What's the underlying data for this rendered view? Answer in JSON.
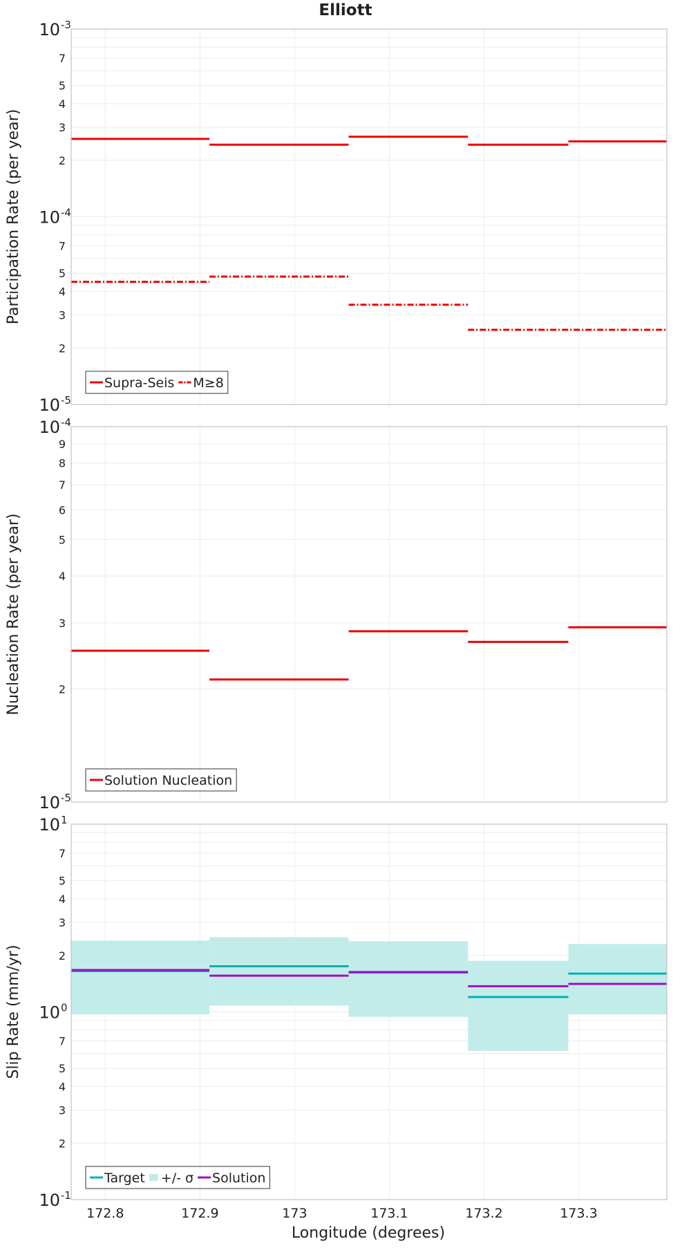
{
  "title": "Elliott",
  "xlabel": "Longitude (degrees)",
  "x_ticks": [
    172.8,
    172.9,
    173,
    173.1,
    173.2,
    173.3
  ],
  "xlim": [
    172.764,
    173.393
  ],
  "chart_data": [
    {
      "type": "line",
      "ylabel": "Participation Rate (per year)",
      "yscale": "log",
      "ylim": [
        1e-05,
        0.001
      ],
      "grid": true,
      "legend": {
        "placement": "bottom-left",
        "entries": [
          "Supra-Seis",
          "M≥8"
        ]
      },
      "series": [
        {
          "name": "Supra-Seis",
          "color": "#ee0000",
          "style": "solid",
          "segments": [
            {
              "x": [
                172.764,
                172.91
              ],
              "y": 0.00026
            },
            {
              "x": [
                172.91,
                173.057
              ],
              "y": 0.000242
            },
            {
              "x": [
                173.057,
                173.183
              ],
              "y": 0.000267
            },
            {
              "x": [
                173.183,
                173.289
              ],
              "y": 0.000242
            },
            {
              "x": [
                173.289,
                173.393
              ],
              "y": 0.000252
            }
          ]
        },
        {
          "name": "M≥8",
          "color": "#ee0000",
          "style": "dash-dot",
          "segments": [
            {
              "x": [
                172.764,
                172.91
              ],
              "y": 4.5e-05
            },
            {
              "x": [
                172.91,
                173.057
              ],
              "y": 4.8e-05
            },
            {
              "x": [
                173.057,
                173.183
              ],
              "y": 3.4e-05
            },
            {
              "x": [
                173.183,
                173.393
              ],
              "y": 2.5e-05
            }
          ]
        }
      ]
    },
    {
      "type": "line",
      "ylabel": "Nucleation Rate (per year)",
      "yscale": "log",
      "ylim": [
        1e-05,
        0.0001
      ],
      "grid": true,
      "legend": {
        "placement": "bottom-left",
        "entries": [
          "Solution Nucleation"
        ]
      },
      "series": [
        {
          "name": "Solution Nucleation",
          "color": "#ee0000",
          "style": "solid",
          "segments": [
            {
              "x": [
                172.764,
                172.91
              ],
              "y": 2.53e-05
            },
            {
              "x": [
                172.91,
                173.057
              ],
              "y": 2.12e-05
            },
            {
              "x": [
                173.057,
                173.183
              ],
              "y": 2.85e-05
            },
            {
              "x": [
                173.183,
                173.289
              ],
              "y": 2.67e-05
            },
            {
              "x": [
                173.289,
                173.393
              ],
              "y": 2.92e-05
            }
          ]
        }
      ]
    },
    {
      "type": "line",
      "ylabel": "Slip Rate (mm/yr)",
      "yscale": "log",
      "ylim": [
        0.1,
        10
      ],
      "grid": true,
      "legend": {
        "placement": "bottom-left",
        "entries": [
          "Target",
          "+/- σ",
          "Solution"
        ]
      },
      "band": {
        "name": "+/- σ",
        "color": "#c2ecea",
        "segments": [
          {
            "x": [
              172.764,
              172.91
            ],
            "low": 0.97,
            "high": 2.4
          },
          {
            "x": [
              172.91,
              173.057
            ],
            "low": 1.08,
            "high": 2.5
          },
          {
            "x": [
              173.057,
              173.183
            ],
            "low": 0.94,
            "high": 2.38
          },
          {
            "x": [
              173.183,
              173.289
            ],
            "low": 0.62,
            "high": 1.87
          },
          {
            "x": [
              173.289,
              173.393
            ],
            "low": 0.97,
            "high": 2.3
          }
        ]
      },
      "series": [
        {
          "name": "Target",
          "color": "#00b0b0",
          "style": "solid",
          "segments": [
            {
              "x": [
                172.764,
                172.91
              ],
              "y": 1.65
            },
            {
              "x": [
                172.91,
                173.057
              ],
              "y": 1.75
            },
            {
              "x": [
                173.057,
                173.183
              ],
              "y": 1.62
            },
            {
              "x": [
                173.183,
                173.289
              ],
              "y": 1.2
            },
            {
              "x": [
                173.289,
                173.393
              ],
              "y": 1.6
            }
          ]
        },
        {
          "name": "Solution",
          "color": "#9a10c0",
          "style": "solid",
          "segments": [
            {
              "x": [
                172.764,
                172.91
              ],
              "y": 1.67
            },
            {
              "x": [
                172.91,
                173.057
              ],
              "y": 1.56
            },
            {
              "x": [
                173.057,
                173.183
              ],
              "y": 1.63
            },
            {
              "x": [
                173.183,
                173.289
              ],
              "y": 1.37
            },
            {
              "x": [
                173.289,
                173.393
              ],
              "y": 1.41
            }
          ]
        }
      ]
    }
  ]
}
